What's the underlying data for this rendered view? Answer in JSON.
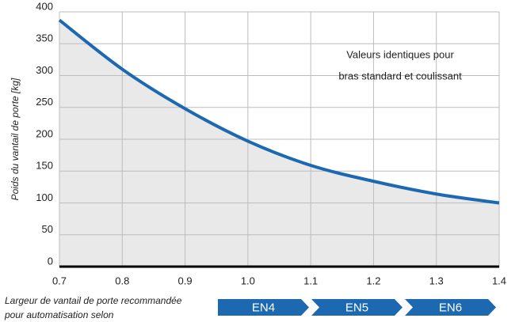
{
  "chart_data": {
    "type": "area",
    "x": [
      0.7,
      0.8,
      0.9,
      1.0,
      1.1,
      1.2,
      1.3,
      1.4
    ],
    "values": [
      387,
      310,
      248,
      197,
      159,
      134,
      114,
      100
    ],
    "color": "#1d69b1",
    "fill": "#e9e9e9",
    "xlim": [
      0.7,
      1.4
    ],
    "xticks": [
      0.7,
      0.8,
      0.9,
      {
        "value": 1,
        "label": "1.0"
      },
      1.1,
      1.2,
      1.3,
      1.4
    ],
    "ylim": [
      0,
      400
    ],
    "yticks": [
      0,
      50,
      100,
      150,
      200,
      250,
      300,
      350,
      400
    ],
    "grid": true,
    "ylabel": "Poids du vantail de porte [kg]",
    "xlabel": [
      "Largeur de vantail de porte recommandée",
      "pour automatisation selon"
    ],
    "annotation": [
      "Valeurs identiques pour",
      "bras standard et coulissant"
    ],
    "classes": [
      "EN4",
      "EN5",
      "EN6"
    ]
  }
}
